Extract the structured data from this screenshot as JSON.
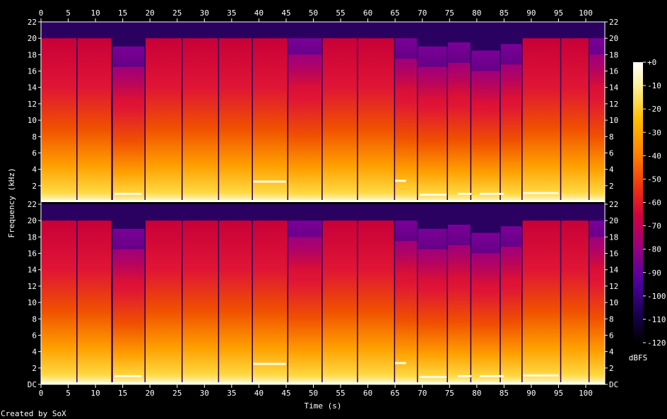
{
  "chart_data": {
    "type": "heatmap",
    "title": "",
    "xlabel": "Time (s)",
    "ylabel": "Frequency (kHz)",
    "x_ticks": [
      "0",
      "5",
      "10",
      "15",
      "20",
      "25",
      "30",
      "35",
      "40",
      "45",
      "50",
      "55",
      "60",
      "65",
      "70",
      "75",
      "80",
      "85",
      "90",
      "95",
      "100"
    ],
    "y_ticks": [
      "DC",
      "2",
      "4",
      "6",
      "8",
      "10",
      "12",
      "14",
      "16",
      "18",
      "20",
      "22"
    ],
    "xlim": [
      0,
      103.5
    ],
    "ylim_khz": [
      0,
      22
    ],
    "channels": 2,
    "colorbar": {
      "label": "dBFS",
      "ticks": [
        "+0",
        "-10",
        "-20",
        "-30",
        "-40",
        "-50",
        "-60",
        "-70",
        "-80",
        "-90",
        "-100",
        "-110",
        "-120"
      ],
      "range": [
        -120,
        0
      ]
    },
    "segments_s": [
      [
        0,
        6.5
      ],
      [
        6.7,
        12.9
      ],
      [
        13.2,
        19.0
      ],
      [
        19.2,
        25.8
      ],
      [
        26.0,
        32.5
      ],
      [
        32.7,
        38.7
      ],
      [
        38.9,
        45.2
      ],
      [
        45.4,
        51.5
      ],
      [
        51.7,
        58.0
      ],
      [
        58.2,
        64.8
      ],
      [
        65.0,
        69.0
      ],
      [
        69.2,
        74.5
      ],
      [
        74.7,
        78.8
      ],
      [
        79.0,
        84.2
      ],
      [
        84.4,
        88.2
      ],
      [
        88.4,
        95.3
      ],
      [
        95.5,
        100.5
      ],
      [
        100.7,
        103.5
      ]
    ],
    "cutoff_khz": [
      20.0,
      20.0,
      16.5,
      20.0,
      20.0,
      20.0,
      20.0,
      18.0,
      20.0,
      20.0,
      17.5,
      16.5,
      17.0,
      16.0,
      16.8,
      20.0,
      20.0,
      18.0
    ],
    "bright_bands": [
      {
        "t0": 13.5,
        "t1": 18.5,
        "khz": 1.0
      },
      {
        "t0": 39.0,
        "t1": 45.0,
        "khz": 2.5
      },
      {
        "t0": 65.0,
        "t1": 67.0,
        "khz": 2.6
      },
      {
        "t0": 69.5,
        "t1": 74.5,
        "khz": 0.9
      },
      {
        "t0": 76.5,
        "t1": 79.0,
        "khz": 1.0
      },
      {
        "t0": 80.5,
        "t1": 85.0,
        "khz": 1.0
      },
      {
        "t0": 88.5,
        "t1": 95.0,
        "khz": 1.1
      }
    ]
  },
  "footer": {
    "credit": "Created by SoX"
  }
}
